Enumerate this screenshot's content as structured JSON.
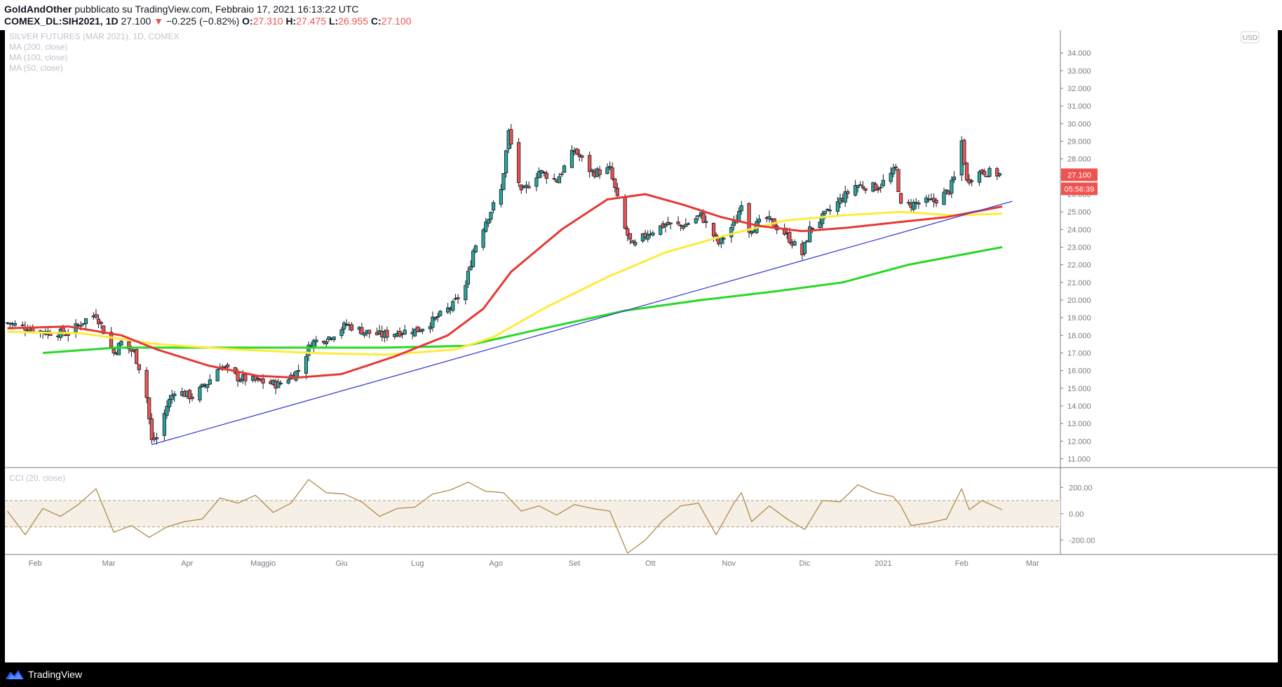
{
  "header": {
    "author": "GoldAndOther",
    "published": "pubblicato su TradingView.com, Febbraio 17, 2021 16:13:22 UTC",
    "symbol": "COMEX_DL:SIH2021, 1D",
    "last": "27.100",
    "change": "−0.225 (−0.82%)",
    "o_label": "O:",
    "o": "27.310",
    "h_label": "H:",
    "h": "27.475",
    "l_label": "L:",
    "l": "26.955",
    "c_label": "C:",
    "c": "27.100"
  },
  "legend": {
    "title": "SILVER FUTURES (MAR 2021), 1D, COMEX",
    "ma200": "MA (200, close)",
    "ma100": "MA (100, close)",
    "ma50": "MA (50, close)",
    "cci": "CCI (20, close)"
  },
  "price_axis": {
    "currency": "USD",
    "ticks": [
      "34.000",
      "33.000",
      "32.000",
      "31.000",
      "30.000",
      "29.000",
      "28.000",
      "27.000",
      "26.000",
      "25.000",
      "24.000",
      "23.000",
      "22.000",
      "21.000",
      "20.000",
      "19.000",
      "18.000",
      "17.000",
      "16.000",
      "15.000",
      "14.000",
      "13.000",
      "12.000",
      "11.000"
    ],
    "last_price_label": "27.100",
    "countdown_label": "05:56:39"
  },
  "cci_axis": {
    "ticks": [
      "200.00",
      "0.00",
      "-200.00"
    ]
  },
  "time_axis": {
    "ticks": [
      "Feb",
      "Mar",
      "Apr",
      "Maggio",
      "Giu",
      "Lug",
      "Ago",
      "Set",
      "Ott",
      "Nov",
      "Dic",
      "2021",
      "Feb",
      "Mar"
    ]
  },
  "footer": {
    "brand": "TradingView"
  },
  "colors": {
    "up": "#26a69a",
    "down": "#ef5350",
    "candle_outline": "#131722",
    "ma50": "#e53935",
    "ma100": "#ffeb3b",
    "ma200": "#26d926",
    "trendline": "#3d3ddb",
    "cci": "#b28a4f",
    "cci_band": "#f5efe6"
  },
  "chart_data": {
    "type": "candlestick",
    "title": "SILVER FUTURES (MAR 2021), 1D, COMEX",
    "ylim": [
      10.5,
      35.3
    ],
    "price_ticks": [
      11,
      12,
      13,
      14,
      15,
      16,
      17,
      18,
      19,
      20,
      21,
      22,
      23,
      24,
      25,
      26,
      27,
      28,
      29,
      30,
      31,
      32,
      33,
      34
    ],
    "x_range": [
      "2020-01-20",
      "2021-03-12"
    ],
    "month_ticks": [
      {
        "label": "Feb",
        "date": "2020-02-01"
      },
      {
        "label": "Mar",
        "date": "2020-03-01"
      },
      {
        "label": "Apr",
        "date": "2020-04-01"
      },
      {
        "label": "Maggio",
        "date": "2020-05-01"
      },
      {
        "label": "Giu",
        "date": "2020-06-01"
      },
      {
        "label": "Lug",
        "date": "2020-07-01"
      },
      {
        "label": "Ago",
        "date": "2020-08-01"
      },
      {
        "label": "Set",
        "date": "2020-09-01"
      },
      {
        "label": "Ott",
        "date": "2020-10-01"
      },
      {
        "label": "Nov",
        "date": "2020-11-01"
      },
      {
        "label": "Dic",
        "date": "2020-12-01"
      },
      {
        "label": "2021",
        "date": "2021-01-01"
      },
      {
        "label": "Feb",
        "date": "2021-02-01"
      },
      {
        "label": "Mar",
        "date": "2021-03-01"
      }
    ],
    "close_path": [
      [
        "2020-01-21",
        18.7
      ],
      [
        "2020-02-04",
        18.2
      ],
      [
        "2020-02-14",
        18.1
      ],
      [
        "2020-02-21",
        18.9
      ],
      [
        "2020-02-25",
        19.2
      ],
      [
        "2020-03-03",
        17.0
      ],
      [
        "2020-03-06",
        17.6
      ],
      [
        "2020-03-11",
        17.0
      ],
      [
        "2020-03-13",
        16.2
      ],
      [
        "2020-03-16",
        14.5
      ],
      [
        "2020-03-18",
        12.0
      ],
      [
        "2020-03-20",
        12.2
      ],
      [
        "2020-03-24",
        14.0
      ],
      [
        "2020-03-27",
        14.9
      ],
      [
        "2020-04-03",
        14.5
      ],
      [
        "2020-04-09",
        15.3
      ],
      [
        "2020-04-14",
        16.3
      ],
      [
        "2020-04-21",
        15.6
      ],
      [
        "2020-04-29",
        15.4
      ],
      [
        "2020-05-07",
        15.2
      ],
      [
        "2020-05-15",
        16.0
      ],
      [
        "2020-05-20",
        17.6
      ],
      [
        "2020-05-27",
        17.9
      ],
      [
        "2020-06-03",
        18.6
      ],
      [
        "2020-06-10",
        18.2
      ],
      [
        "2020-06-17",
        18.0
      ],
      [
        "2020-06-24",
        18.2
      ],
      [
        "2020-07-01",
        18.3
      ],
      [
        "2020-07-08",
        18.9
      ],
      [
        "2020-07-15",
        19.7
      ],
      [
        "2020-07-20",
        20.8
      ],
      [
        "2020-07-23",
        22.8
      ],
      [
        "2020-07-28",
        24.5
      ],
      [
        "2020-08-03",
        26.2
      ],
      [
        "2020-08-06",
        29.5
      ],
      [
        "2020-08-11",
        26.0
      ],
      [
        "2020-08-18",
        27.3
      ],
      [
        "2020-08-25",
        26.8
      ],
      [
        "2020-09-01",
        28.5
      ],
      [
        "2020-09-08",
        27.2
      ],
      [
        "2020-09-15",
        27.4
      ],
      [
        "2020-09-21",
        24.0
      ],
      [
        "2020-09-24",
        23.0
      ],
      [
        "2020-09-30",
        23.8
      ],
      [
        "2020-10-07",
        24.3
      ],
      [
        "2020-10-14",
        24.2
      ],
      [
        "2020-10-21",
        24.8
      ],
      [
        "2020-10-28",
        23.2
      ],
      [
        "2020-11-04",
        24.5
      ],
      [
        "2020-11-06",
        25.6
      ],
      [
        "2020-11-09",
        24.0
      ],
      [
        "2020-11-16",
        24.6
      ],
      [
        "2020-11-23",
        23.8
      ],
      [
        "2020-11-30",
        22.6
      ],
      [
        "2020-12-03",
        24.0
      ],
      [
        "2020-12-09",
        24.8
      ],
      [
        "2020-12-16",
        25.8
      ],
      [
        "2020-12-21",
        26.5
      ],
      [
        "2020-12-30",
        26.4
      ],
      [
        "2021-01-06",
        27.4
      ],
      [
        "2021-01-08",
        25.3
      ],
      [
        "2021-01-14",
        25.5
      ],
      [
        "2021-01-21",
        25.6
      ],
      [
        "2021-01-27",
        26.2
      ],
      [
        "2021-01-29",
        26.9
      ],
      [
        "2021-02-01",
        29.0
      ],
      [
        "2021-02-03",
        26.7
      ],
      [
        "2021-02-05",
        27.0
      ],
      [
        "2021-02-09",
        27.3
      ],
      [
        "2021-02-17",
        27.1
      ]
    ],
    "ma50": [
      [
        "2020-01-21",
        18.4
      ],
      [
        "2020-02-14",
        18.5
      ],
      [
        "2020-03-06",
        18.0
      ],
      [
        "2020-03-20",
        17.2
      ],
      [
        "2020-04-09",
        16.3
      ],
      [
        "2020-04-29",
        15.7
      ],
      [
        "2020-05-14",
        15.6
      ],
      [
        "2020-06-01",
        15.8
      ],
      [
        "2020-06-22",
        16.8
      ],
      [
        "2020-07-13",
        18.0
      ],
      [
        "2020-07-27",
        19.5
      ],
      [
        "2020-08-07",
        21.6
      ],
      [
        "2020-08-27",
        24.0
      ],
      [
        "2020-09-14",
        25.7
      ],
      [
        "2020-09-29",
        26.0
      ],
      [
        "2020-10-14",
        25.4
      ],
      [
        "2020-10-29",
        24.7
      ],
      [
        "2020-11-13",
        24.2
      ],
      [
        "2020-11-30",
        23.9
      ],
      [
        "2020-12-18",
        24.1
      ],
      [
        "2021-01-06",
        24.4
      ],
      [
        "2021-01-26",
        24.7
      ],
      [
        "2021-02-17",
        25.3
      ]
    ],
    "ma100": [
      [
        "2020-01-21",
        18.2
      ],
      [
        "2020-02-20",
        18.1
      ],
      [
        "2020-03-20",
        17.5
      ],
      [
        "2020-04-20",
        17.2
      ],
      [
        "2020-05-20",
        17.0
      ],
      [
        "2020-06-19",
        16.9
      ],
      [
        "2020-07-16",
        17.2
      ],
      [
        "2020-07-31",
        17.9
      ],
      [
        "2020-08-21",
        19.6
      ],
      [
        "2020-09-14",
        21.3
      ],
      [
        "2020-10-07",
        22.7
      ],
      [
        "2020-10-29",
        23.6
      ],
      [
        "2020-11-23",
        24.5
      ],
      [
        "2020-12-16",
        24.8
      ],
      [
        "2021-01-08",
        25.0
      ],
      [
        "2021-01-29",
        24.8
      ],
      [
        "2021-02-17",
        24.9
      ]
    ],
    "ma200": [
      [
        "2020-02-04",
        17.0
      ],
      [
        "2020-03-04",
        17.3
      ],
      [
        "2020-04-08",
        17.3
      ],
      [
        "2020-05-14",
        17.3
      ],
      [
        "2020-06-18",
        17.3
      ],
      [
        "2020-07-20",
        17.4
      ],
      [
        "2020-08-17",
        18.3
      ],
      [
        "2020-09-21",
        19.4
      ],
      [
        "2020-10-21",
        20.0
      ],
      [
        "2020-11-20",
        20.5
      ],
      [
        "2020-12-16",
        21.0
      ],
      [
        "2021-01-11",
        22.0
      ],
      [
        "2021-02-17",
        23.0
      ]
    ],
    "trendline": [
      [
        "2020-03-18",
        11.8
      ],
      [
        "2021-02-21",
        25.6
      ]
    ],
    "cci_ylim": [
      -310,
      340
    ],
    "cci_band": [
      -100,
      100
    ],
    "cci": [
      [
        "2020-01-21",
        20
      ],
      [
        "2020-01-28",
        -160
      ],
      [
        "2020-02-04",
        40
      ],
      [
        "2020-02-11",
        -20
      ],
      [
        "2020-02-18",
        70
      ],
      [
        "2020-02-25",
        190
      ],
      [
        "2020-03-03",
        -140
      ],
      [
        "2020-03-10",
        -90
      ],
      [
        "2020-03-17",
        -180
      ],
      [
        "2020-03-24",
        -100
      ],
      [
        "2020-03-31",
        -60
      ],
      [
        "2020-04-07",
        -40
      ],
      [
        "2020-04-14",
        120
      ],
      [
        "2020-04-21",
        80
      ],
      [
        "2020-04-28",
        140
      ],
      [
        "2020-05-05",
        10
      ],
      [
        "2020-05-12",
        80
      ],
      [
        "2020-05-19",
        260
      ],
      [
        "2020-05-26",
        160
      ],
      [
        "2020-06-02",
        150
      ],
      [
        "2020-06-09",
        90
      ],
      [
        "2020-06-16",
        -20
      ],
      [
        "2020-06-23",
        40
      ],
      [
        "2020-06-30",
        50
      ],
      [
        "2020-07-07",
        150
      ],
      [
        "2020-07-14",
        180
      ],
      [
        "2020-07-21",
        240
      ],
      [
        "2020-07-28",
        170
      ],
      [
        "2020-08-04",
        160
      ],
      [
        "2020-08-11",
        20
      ],
      [
        "2020-08-18",
        60
      ],
      [
        "2020-08-25",
        -10
      ],
      [
        "2020-09-01",
        70
      ],
      [
        "2020-09-08",
        40
      ],
      [
        "2020-09-15",
        20
      ],
      [
        "2020-09-22",
        -300
      ],
      [
        "2020-09-29",
        -200
      ],
      [
        "2020-10-06",
        -50
      ],
      [
        "2020-10-13",
        60
      ],
      [
        "2020-10-20",
        80
      ],
      [
        "2020-10-27",
        -160
      ],
      [
        "2020-11-03",
        80
      ],
      [
        "2020-11-06",
        160
      ],
      [
        "2020-11-10",
        -60
      ],
      [
        "2020-11-17",
        60
      ],
      [
        "2020-11-24",
        -40
      ],
      [
        "2020-12-01",
        -120
      ],
      [
        "2020-12-08",
        100
      ],
      [
        "2020-12-15",
        90
      ],
      [
        "2020-12-22",
        220
      ],
      [
        "2020-12-29",
        160
      ],
      [
        "2021-01-05",
        130
      ],
      [
        "2021-01-08",
        60
      ],
      [
        "2021-01-12",
        -90
      ],
      [
        "2021-01-19",
        -70
      ],
      [
        "2021-01-26",
        -40
      ],
      [
        "2021-02-01",
        190
      ],
      [
        "2021-02-04",
        30
      ],
      [
        "2021-02-09",
        100
      ],
      [
        "2021-02-17",
        30
      ]
    ]
  }
}
